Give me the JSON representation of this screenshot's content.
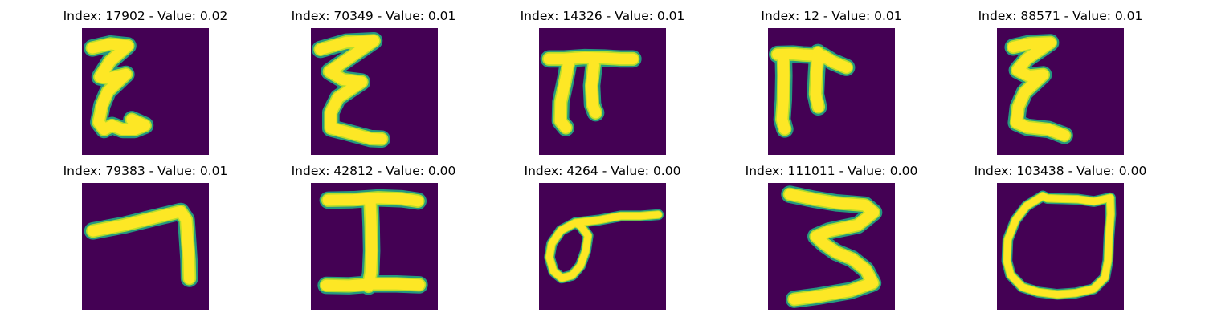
{
  "colors": {
    "background": "#440154",
    "stroke_outer": "#22a884",
    "stroke_mid": "#b5de2b",
    "stroke_core": "#fde725"
  },
  "panels": [
    {
      "title": "Index: 17902 - Value: 0.02",
      "glyph": "E-zigzag-1"
    },
    {
      "title": "Index: 70349 - Value: 0.01",
      "glyph": "E-zigzag-2"
    },
    {
      "title": "Index: 14326 - Value: 0.01",
      "glyph": "pi-1"
    },
    {
      "title": "Index: 12 - Value: 0.01",
      "glyph": "pi-2"
    },
    {
      "title": "Index: 88571 - Value: 0.01",
      "glyph": "E-zigzag-3"
    },
    {
      "title": "Index: 79383 - Value: 0.01",
      "glyph": "seven"
    },
    {
      "title": "Index: 42812 - Value: 0.00",
      "glyph": "capital-I"
    },
    {
      "title": "Index: 4264 - Value: 0.00",
      "glyph": "loop"
    },
    {
      "title": "Index: 111011 - Value: 0.00",
      "glyph": "three"
    },
    {
      "title": "Index: 103438 - Value: 0.00",
      "glyph": "circle"
    }
  ]
}
